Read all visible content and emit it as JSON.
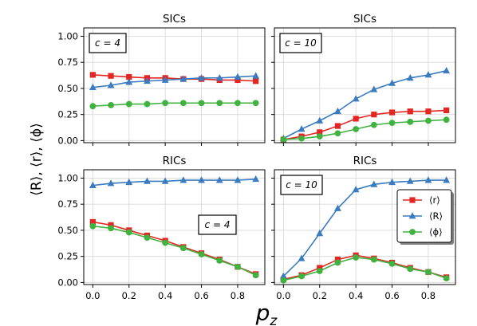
{
  "colors": {
    "r": "#e32622",
    "R": "#3b7bbf",
    "phi": "#3fb23f",
    "grid": "#d9d9d9"
  },
  "axis": {
    "ylabel": "⟨R⟩, ⟨r⟩, ⟨ϕ⟩",
    "xlabel": "p",
    "xlabel_sub": "z",
    "xticks": [
      "0.0",
      "0.2",
      "0.4",
      "0.6",
      "0.8"
    ],
    "yticks": [
      "0.00",
      "0.25",
      "0.50",
      "0.75",
      "1.00"
    ]
  },
  "legend": {
    "placement": "right-middle of bottom-right panel",
    "entries": [
      "⟨r⟩",
      "⟨R⟩",
      "⟨ϕ⟩"
    ]
  },
  "chart_data": [
    {
      "type": "line",
      "title": "SICs",
      "annotation": "c = 4",
      "x": [
        0,
        0.1,
        0.2,
        0.3,
        0.4,
        0.5,
        0.6,
        0.7,
        0.8,
        0.9
      ],
      "xlim": [
        -0.05,
        0.95
      ],
      "ylim": [
        -0.02,
        1.08
      ],
      "grid": true,
      "series": [
        {
          "name": "⟨r⟩",
          "marker": "square",
          "values": [
            0.63,
            0.62,
            0.61,
            0.6,
            0.6,
            0.59,
            0.59,
            0.58,
            0.58,
            0.57
          ]
        },
        {
          "name": "⟨R⟩",
          "marker": "triangle",
          "values": [
            0.51,
            0.53,
            0.56,
            0.57,
            0.58,
            0.59,
            0.6,
            0.6,
            0.61,
            0.62
          ]
        },
        {
          "name": "⟨ϕ⟩",
          "marker": "circle",
          "values": [
            0.33,
            0.34,
            0.35,
            0.35,
            0.36,
            0.36,
            0.36,
            0.36,
            0.36,
            0.36
          ]
        }
      ]
    },
    {
      "type": "line",
      "title": "SICs",
      "annotation": "c = 10",
      "x": [
        0,
        0.1,
        0.2,
        0.3,
        0.4,
        0.5,
        0.6,
        0.7,
        0.8,
        0.9
      ],
      "xlim": [
        -0.05,
        0.95
      ],
      "ylim": [
        -0.02,
        1.08
      ],
      "grid": true,
      "series": [
        {
          "name": "⟨r⟩",
          "marker": "square",
          "values": [
            0.01,
            0.04,
            0.08,
            0.14,
            0.21,
            0.25,
            0.27,
            0.28,
            0.28,
            0.29
          ]
        },
        {
          "name": "⟨R⟩",
          "marker": "triangle",
          "values": [
            0.02,
            0.11,
            0.19,
            0.28,
            0.4,
            0.49,
            0.55,
            0.6,
            0.63,
            0.67
          ]
        },
        {
          "name": "⟨ϕ⟩",
          "marker": "circle",
          "values": [
            0.01,
            0.02,
            0.04,
            0.07,
            0.11,
            0.15,
            0.17,
            0.18,
            0.19,
            0.2
          ]
        }
      ]
    },
    {
      "type": "line",
      "title": "RICs",
      "annotation": "c = 4",
      "x": [
        0,
        0.1,
        0.2,
        0.3,
        0.4,
        0.5,
        0.6,
        0.7,
        0.8,
        0.9
      ],
      "xlim": [
        -0.05,
        0.95
      ],
      "ylim": [
        -0.02,
        1.08
      ],
      "grid": true,
      "series": [
        {
          "name": "⟨r⟩",
          "marker": "square",
          "values": [
            0.58,
            0.55,
            0.5,
            0.45,
            0.4,
            0.34,
            0.28,
            0.22,
            0.15,
            0.08
          ]
        },
        {
          "name": "⟨R⟩",
          "marker": "triangle",
          "values": [
            0.93,
            0.95,
            0.96,
            0.97,
            0.97,
            0.98,
            0.98,
            0.98,
            0.98,
            0.99
          ]
        },
        {
          "name": "⟨ϕ⟩",
          "marker": "circle",
          "values": [
            0.54,
            0.52,
            0.48,
            0.43,
            0.38,
            0.33,
            0.27,
            0.21,
            0.15,
            0.07
          ]
        }
      ]
    },
    {
      "type": "line",
      "title": "RICs",
      "annotation": "c = 10",
      "x": [
        0,
        0.1,
        0.2,
        0.3,
        0.4,
        0.5,
        0.6,
        0.7,
        0.8,
        0.9
      ],
      "xlim": [
        -0.05,
        0.95
      ],
      "ylim": [
        -0.02,
        1.08
      ],
      "grid": true,
      "series": [
        {
          "name": "⟨r⟩",
          "marker": "square",
          "values": [
            0.03,
            0.07,
            0.14,
            0.22,
            0.26,
            0.23,
            0.19,
            0.14,
            0.1,
            0.05
          ]
        },
        {
          "name": "⟨R⟩",
          "marker": "triangle",
          "values": [
            0.06,
            0.23,
            0.47,
            0.71,
            0.89,
            0.94,
            0.96,
            0.97,
            0.98,
            0.98
          ]
        },
        {
          "name": "⟨ϕ⟩",
          "marker": "circle",
          "values": [
            0.02,
            0.06,
            0.11,
            0.19,
            0.24,
            0.22,
            0.18,
            0.13,
            0.1,
            0.04
          ]
        }
      ]
    }
  ]
}
